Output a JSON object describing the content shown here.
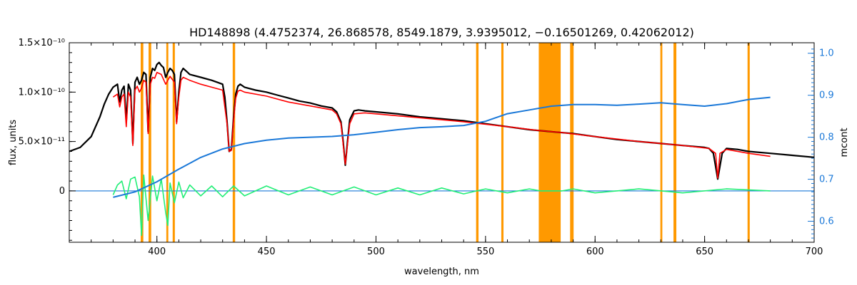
{
  "chart_data": {
    "type": "line",
    "title": "HD148898   (4.4752374, 26.868578, 8549.1879, 3.9395012, −0.16501269, 0.42062012)",
    "xlabel": "wavelength, nm",
    "ylabel": "flux, units",
    "y2label": "mcont",
    "xlim": [
      360,
      700
    ],
    "ylim": [
      -5.2e-11,
      1.5e-10
    ],
    "y2lim": [
      0.55,
      1.025
    ],
    "x_ticks": [
      "400",
      "450",
      "500",
      "550",
      "600",
      "650",
      "700"
    ],
    "y_ticks": [
      "1.5×10⁻¹⁰",
      "1.0×10⁻¹⁰",
      "5.0×10⁻¹¹",
      "0"
    ],
    "y2_ticks": [
      "1.0",
      "0.9",
      "0.8",
      "0.7",
      "0.6"
    ],
    "masked_regions": [
      [
        392.6,
        393.8
      ],
      [
        396.2,
        397.4
      ],
      [
        404.3,
        405.2
      ],
      [
        407.2,
        408.2
      ],
      [
        434.6,
        435.7
      ],
      [
        545.7,
        546.8
      ],
      [
        557.2,
        558.2
      ],
      [
        574.3,
        584.3
      ],
      [
        588.6,
        590.2
      ],
      [
        629.8,
        630.7
      ],
      [
        635.8,
        637.1
      ],
      [
        669.6,
        670.6
      ]
    ],
    "series": [
      {
        "key": "observed",
        "color": "#000000",
        "x": [
          360,
          365,
          370,
          372,
          374,
          376,
          378,
          380,
          382,
          383,
          384,
          385,
          386,
          387,
          388,
          389,
          390,
          391,
          392,
          393,
          394,
          395,
          396,
          397,
          398,
          399,
          400,
          401,
          402,
          403,
          404,
          405,
          406,
          407,
          408,
          409,
          410,
          411,
          412,
          413,
          414,
          415,
          420,
          425,
          430,
          431,
          432,
          433,
          434,
          435,
          436,
          437,
          438,
          440,
          445,
          450,
          455,
          460,
          465,
          470,
          475,
          480,
          482,
          484,
          485,
          486,
          487,
          488,
          490,
          492,
          495,
          500,
          510,
          520,
          530,
          540,
          550,
          560,
          570,
          580,
          590,
          600,
          610,
          620,
          630,
          640,
          650,
          652,
          654,
          655,
          656,
          657,
          658,
          660,
          665,
          670,
          680,
          690,
          700
        ],
        "y": [
          4e-11,
          4.4e-11,
          5.5e-11,
          6.5e-11,
          7.5e-11,
          8.8e-11,
          9.8e-11,
          1.05e-10,
          1.08e-10,
          9e-11,
          1.02e-10,
          1.06e-10,
          7e-11,
          1.08e-10,
          1.02e-10,
          4.8e-11,
          1.1e-10,
          1.15e-10,
          1.08e-10,
          1.12e-10,
          1.2e-10,
          1.18e-10,
          6e-11,
          1.15e-10,
          1.24e-10,
          1.22e-10,
          1.28e-10,
          1.3e-10,
          1.27e-10,
          1.25e-10,
          1.15e-10,
          1.2e-10,
          1.24e-10,
          1.22e-10,
          1.18e-10,
          7e-11,
          1e-10,
          1.2e-10,
          1.24e-10,
          1.22e-10,
          1.2e-10,
          1.18e-10,
          1.15e-10,
          1.12e-10,
          1.08e-10,
          9.5e-11,
          7e-11,
          4e-11,
          4.2e-11,
          7.5e-11,
          9.8e-11,
          1.06e-10,
          1.08e-10,
          1.05e-10,
          1.02e-10,
          1e-10,
          9.7e-11,
          9.4e-11,
          9.1e-11,
          8.9e-11,
          8.6e-11,
          8.4e-11,
          8e-11,
          7e-11,
          5e-11,
          2.6e-11,
          5e-11,
          7.2e-11,
          8.1e-11,
          8.2e-11,
          8.1e-11,
          8e-11,
          7.8e-11,
          7.5e-11,
          7.3e-11,
          7.1e-11,
          6.8e-11,
          6.5e-11,
          6.2e-11,
          6e-11,
          5.8e-11,
          5.5e-11,
          5.2e-11,
          5e-11,
          4.8e-11,
          4.6e-11,
          4.4e-11,
          4.3e-11,
          3.8e-11,
          2.5e-11,
          1.2e-11,
          2.5e-11,
          3.8e-11,
          4.3e-11,
          4.2e-11,
          4e-11,
          3.8e-11,
          3.6e-11,
          3.4e-11
        ]
      },
      {
        "key": "model",
        "color": "#ff0000",
        "x": [
          380,
          382,
          383,
          384,
          385,
          386,
          387,
          388,
          389,
          390,
          391,
          392,
          393,
          394,
          395,
          396,
          397,
          398,
          399,
          400,
          402,
          404,
          405,
          406,
          408,
          409,
          410,
          411,
          412,
          415,
          420,
          425,
          430,
          432,
          433,
          434,
          435,
          436,
          437,
          438,
          440,
          450,
          460,
          470,
          480,
          482,
          484,
          486,
          488,
          490,
          495,
          500,
          520,
          540,
          560,
          575,
          585,
          600,
          620,
          640,
          652,
          655,
          656,
          657,
          660,
          670,
          680
        ],
        "y": [
          9.5e-11,
          9.8e-11,
          8.5e-11,
          9.5e-11,
          9.8e-11,
          6.5e-11,
          1e-10,
          9.5e-11,
          4.6e-11,
          1.02e-10,
          1.06e-10,
          1e-10,
          1.04e-10,
          1.12e-10,
          1.1e-10,
          5.8e-11,
          1.08e-10,
          1.15e-10,
          1.14e-10,
          1.2e-10,
          1.18e-10,
          1.08e-10,
          1.12e-10,
          1.16e-10,
          1.1e-10,
          6.8e-11,
          9.5e-11,
          1.12e-10,
          1.15e-10,
          1.12e-10,
          1.08e-10,
          1.05e-10,
          1.02e-10,
          6.8e-11,
          4e-11,
          4.1e-11,
          7.2e-11,
          9.4e-11,
          1.01e-10,
          1.02e-10,
          1e-10,
          9.6e-11,
          9e-11,
          8.6e-11,
          8.2e-11,
          7.8e-11,
          6.8e-11,
          2.7e-11,
          6.8e-11,
          7.8e-11,
          7.9e-11,
          7.8e-11,
          7.4e-11,
          7e-11,
          6.5e-11,
          6.1e-11,
          5.9e-11,
          5.5e-11,
          5e-11,
          4.6e-11,
          4.3e-11,
          3.8e-11,
          1.3e-11,
          3.8e-11,
          4.2e-11,
          3.8e-11,
          3.5e-11
        ]
      },
      {
        "key": "residual",
        "color": "#22ee77",
        "x": [
          380,
          382,
          384,
          386,
          388,
          390,
          392,
          393,
          394,
          396,
          398,
          400,
          402,
          404,
          405,
          406,
          408,
          410,
          412,
          415,
          420,
          425,
          430,
          435,
          440,
          450,
          460,
          470,
          480,
          490,
          500,
          510,
          520,
          530,
          540,
          550,
          560,
          570,
          575,
          585,
          590,
          600,
          620,
          640,
          660,
          680
        ],
        "y": [
          -4e-12,
          6e-12,
          1e-11,
          -8e-12,
          1.2e-11,
          1.4e-11,
          -6e-12,
          -4.5e-11,
          1.6e-11,
          -3e-11,
          1.5e-11,
          -1e-11,
          1.2e-11,
          -2.2e-11,
          -3.5e-11,
          8e-12,
          -1.2e-11,
          9e-12,
          -7e-12,
          6e-12,
          -5e-12,
          5e-12,
          -6e-12,
          5e-12,
          -5e-12,
          5e-12,
          -4e-12,
          4e-12,
          -4e-12,
          4e-12,
          -4e-12,
          3e-12,
          -4e-12,
          3e-12,
          -3e-12,
          2e-12,
          -2e-12,
          2e-12,
          0,
          0,
          2e-12,
          -2e-12,
          2e-12,
          -2e-12,
          2e-12,
          0
        ]
      },
      {
        "key": "mcont",
        "color": "#1a78d8",
        "axis": "right",
        "x": [
          380,
          390,
          400,
          410,
          420,
          430,
          440,
          450,
          460,
          470,
          480,
          490,
          500,
          510,
          520,
          530,
          540,
          550,
          560,
          570,
          580,
          590,
          600,
          610,
          620,
          630,
          640,
          650,
          660,
          670,
          680
        ],
        "y": [
          0.657,
          0.67,
          0.694,
          0.724,
          0.752,
          0.772,
          0.785,
          0.793,
          0.798,
          0.8,
          0.802,
          0.806,
          0.812,
          0.818,
          0.823,
          0.825,
          0.828,
          0.838,
          0.856,
          0.865,
          0.874,
          0.878,
          0.878,
          0.876,
          0.879,
          0.882,
          0.878,
          0.874,
          0.88,
          0.89,
          0.895
        ]
      }
    ],
    "zero_line": {
      "color": "#1a78d8",
      "value": 0
    }
  }
}
